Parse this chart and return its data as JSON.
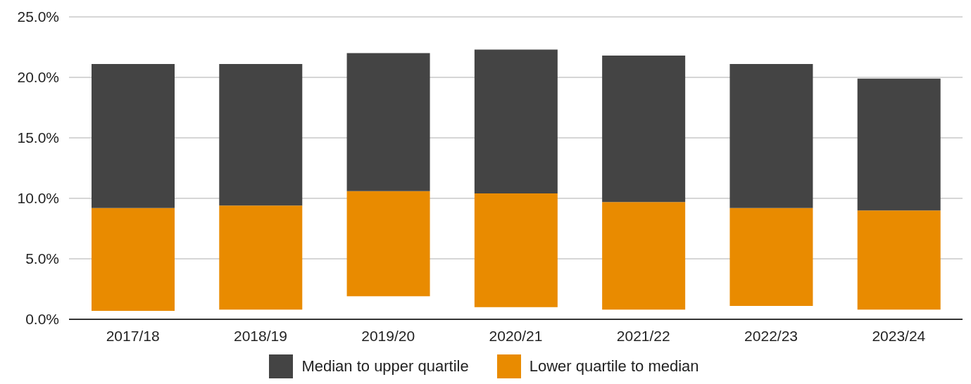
{
  "chart_data": {
    "type": "bar",
    "categories": [
      "2017/18",
      "2018/19",
      "2019/20",
      "2020/21",
      "2021/22",
      "2022/23",
      "2023/24"
    ],
    "series": [
      {
        "name": "Lower quartile to median",
        "color": "#e98b00",
        "base": [
          0.7,
          0.8,
          1.9,
          1.0,
          0.8,
          1.1,
          0.8
        ],
        "values": [
          8.5,
          8.6,
          8.7,
          9.4,
          8.9,
          8.1,
          8.2
        ]
      },
      {
        "name": "Median to upper quartile",
        "color": "#444444",
        "base": [
          9.2,
          9.4,
          10.6,
          10.4,
          9.7,
          9.2,
          9.0
        ],
        "values": [
          11.9,
          11.7,
          11.4,
          11.9,
          12.1,
          11.9,
          10.9
        ]
      }
    ],
    "ylim": [
      0,
      25
    ],
    "yticks": [
      {
        "value": 0,
        "label": "0.0%"
      },
      {
        "value": 5,
        "label": "5.0%"
      },
      {
        "value": 10,
        "label": "10.0%"
      },
      {
        "value": 15,
        "label": "15.0%"
      },
      {
        "value": 20,
        "label": "20.0%"
      },
      {
        "value": 25,
        "label": "25.0%"
      }
    ],
    "grid": "y",
    "legend": "bottom"
  }
}
